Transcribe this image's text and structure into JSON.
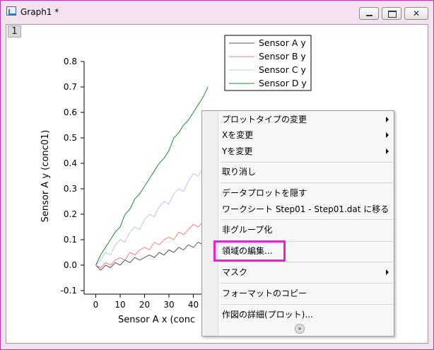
{
  "window": {
    "title": "Graph1 *",
    "icons": {
      "app": "graph-window-icon",
      "minimize": "minimize-icon",
      "maximize": "maximize-icon",
      "close": "close-icon"
    },
    "close_glyph": "✕"
  },
  "layer": {
    "tab_label": "1"
  },
  "chart_data": {
    "type": "line",
    "x_ticks": [
      "0",
      "10",
      "20",
      "30",
      "40"
    ],
    "y_ticks": [
      "-0.1",
      "0.0",
      "0.1",
      "0.2",
      "0.3",
      "0.4",
      "0.5",
      "0.6",
      "0.7",
      "0.8"
    ],
    "xlim": [
      -5,
      47
    ],
    "ylim": [
      -0.1,
      0.8
    ],
    "xlabel": "Sensor A x (conc",
    "ylabel": "Sensor A y (conc01)",
    "grid": false,
    "legend_position": "top-center",
    "series": [
      {
        "name": "Sensor A y",
        "color": "#555555",
        "x": [
          0,
          2,
          4,
          6,
          8,
          10,
          12,
          14,
          16,
          18,
          20,
          22,
          24,
          26,
          28,
          30,
          32,
          34,
          36,
          38,
          40,
          42,
          44,
          46
        ],
        "y": [
          0.0,
          -0.02,
          0.0,
          -0.01,
          0.01,
          0.0,
          0.02,
          0.01,
          0.03,
          0.02,
          0.03,
          0.04,
          0.03,
          0.05,
          0.04,
          0.06,
          0.05,
          0.07,
          0.06,
          0.08,
          0.07,
          0.09,
          0.08,
          0.1
        ]
      },
      {
        "name": "Sensor B y",
        "color": "#f08080",
        "x": [
          0,
          2,
          4,
          6,
          8,
          10,
          12,
          14,
          16,
          18,
          20,
          22,
          24,
          26,
          28,
          30,
          32,
          34,
          36,
          38,
          40,
          42,
          44,
          46
        ],
        "y": [
          0.0,
          -0.01,
          0.01,
          0.0,
          0.02,
          0.03,
          0.02,
          0.05,
          0.04,
          0.06,
          0.07,
          0.06,
          0.09,
          0.08,
          0.1,
          0.11,
          0.1,
          0.13,
          0.12,
          0.14,
          0.16,
          0.15,
          0.17,
          0.19
        ]
      },
      {
        "name": "Sensor C y",
        "color": "#b5c8ee",
        "x": [
          0,
          2,
          4,
          6,
          8,
          10,
          12,
          14,
          16,
          18,
          20,
          22,
          24,
          26,
          28,
          30,
          32,
          34,
          36,
          38,
          40,
          42,
          44,
          46
        ],
        "y": [
          0.0,
          0.02,
          0.05,
          0.04,
          0.08,
          0.1,
          0.09,
          0.13,
          0.15,
          0.14,
          0.18,
          0.2,
          0.19,
          0.23,
          0.25,
          0.24,
          0.28,
          0.3,
          0.29,
          0.33,
          0.36,
          0.35,
          0.38,
          0.39
        ]
      },
      {
        "name": "Sensor D y",
        "color": "#1c8a2e",
        "x": [
          0,
          2,
          4,
          6,
          8,
          10,
          12,
          14,
          16,
          18,
          20,
          22,
          24,
          26,
          28,
          30,
          32,
          34,
          36,
          38,
          40,
          42,
          44,
          46
        ],
        "y": [
          0.0,
          0.04,
          0.07,
          0.1,
          0.13,
          0.15,
          0.2,
          0.22,
          0.26,
          0.28,
          0.31,
          0.34,
          0.37,
          0.4,
          0.42,
          0.45,
          0.5,
          0.52,
          0.55,
          0.57,
          0.6,
          0.63,
          0.66,
          0.7
        ]
      }
    ]
  },
  "context_menu": {
    "items": [
      {
        "label": "プロットタイプの変更",
        "submenu": true
      },
      {
        "label": "Xを変更",
        "submenu": true
      },
      {
        "label": "Yを変更",
        "submenu": true
      },
      {
        "label": "取り消し",
        "submenu": false
      },
      {
        "label": "データプロットを隠す",
        "submenu": false
      },
      {
        "label": "ワークシート Step01 - Step01.dat に移る",
        "submenu": false
      },
      {
        "label": "非グループ化",
        "submenu": false
      },
      {
        "label": "領域の編集...",
        "submenu": false,
        "highlighted": true
      },
      {
        "label": "マスク",
        "submenu": true
      },
      {
        "label": "フォーマットのコピー",
        "submenu": false
      },
      {
        "label": "作図の詳細(プロット)...",
        "submenu": false
      }
    ],
    "more_glyph": "»",
    "more_icon": "expand-more-icon",
    "highlight_color": "#e524d0"
  }
}
